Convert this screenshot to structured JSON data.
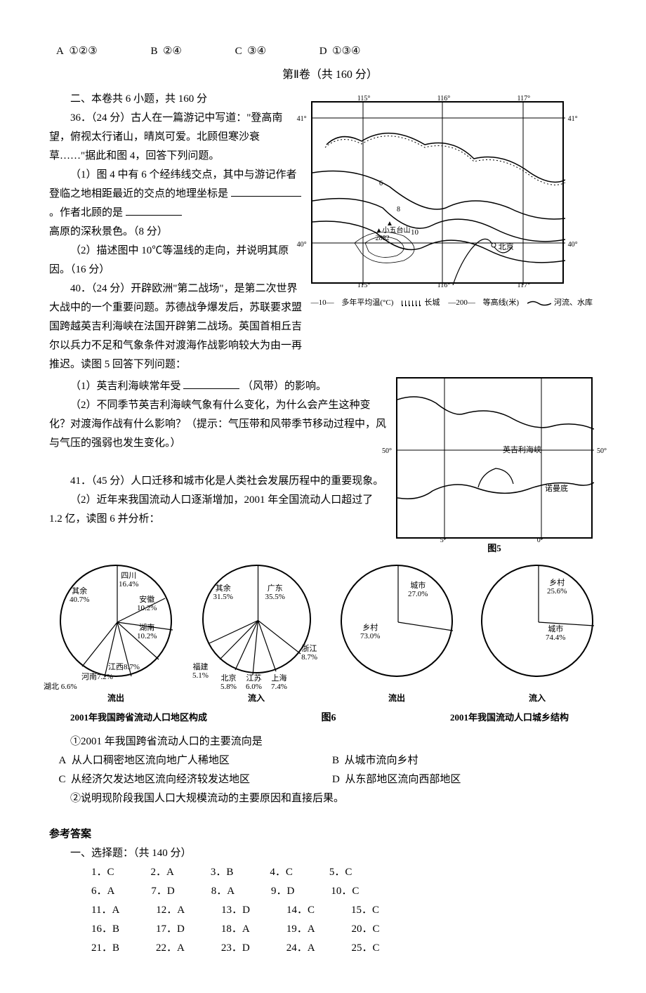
{
  "topOptions": {
    "A": "①②③",
    "B": "②④",
    "C": "③④",
    "D": "①③④"
  },
  "section2Title": "第Ⅱ卷（共 160 分）",
  "intro2": "二、本卷共 6 小题，共 160 分",
  "q36": {
    "head": "36．（24 分）古人在一篇游记中写道：\"登高南望，俯视太行诸山，晴岚可爱。北顾但寒沙衰草……\"据此和图 4，回答下列问题。",
    "p1a": "（1）图 4 中有 6 个经纬线交点，其中与游记作者登临之地相距最近的交点的地理坐标是",
    "p1b": "。作者北顾的是",
    "p1c": "高原的深秋景色。（8 分）",
    "p2": "（2）描述图中 10℃等温线的走向，并说明其原因。（16 分）"
  },
  "q40": {
    "head": "40．（24 分）开辟欧洲\"第二战场\"，是第二次世界大战中的一个重要问题。苏德战争爆发后，苏联要求盟国跨越英吉利海峡在法国开辟第二战场。英国首相丘吉尔以兵力不足和气象条件对渡海作战影响较大为由一再推迟。读图 5 回答下列问题：",
    "p1a": "（1）英吉利海峡常年受",
    "p1b": "（风带）的影响。",
    "p2": "（2）不同季节英吉利海峡气象有什么变化，为什么会产生这种变化？对渡海作战有什么影响？（提示：气压带和风带季节移动过程中，风与气压的强弱也发生变化。）"
  },
  "q41": {
    "head": "41．（45 分）人口迁移和城市化是人类社会发展历程中的重要现象。",
    "p2": "（2）近年来我国流动人口逐渐增加，2001 年全国流动人口超过了 1.2 亿，读图 6 并分析：",
    "q": "①2001 年我国跨省流动人口的主要流向是",
    "opts": {
      "A": "从人口稠密地区流向地广人稀地区",
      "B": "从城市流向乡村",
      "C": "从经济欠发达地区流向经济较发达地区",
      "D": "从东部地区流向西部地区"
    },
    "q2": "②说明现阶段我国人口大规模流动的主要原因和直接后果。"
  },
  "map4": {
    "lons": [
      "115°",
      "116°",
      "117°"
    ],
    "lats": [
      "41°",
      "40°"
    ],
    "peak_label": "▲小五台山",
    "peak_elev": "2882",
    "city": "北京",
    "iso_labels": [
      "6",
      "8",
      "10"
    ],
    "legend": {
      "iso": "多年平均温(°C)",
      "iso_prefix": "—10—",
      "wall": "长城",
      "elev_prefix": "—200—",
      "elev": "等高线(米)",
      "river": "河流、水库"
    }
  },
  "map5": {
    "lons": [
      "5°",
      "0°"
    ],
    "lats": [
      "50°"
    ],
    "strait_label": "英吉利海峡",
    "city": "诺曼底",
    "caption": "图5"
  },
  "pies": {
    "out_province": {
      "title": "流出",
      "slices": [
        {
          "label": "四川",
          "pct": "16.4%"
        },
        {
          "label": "安徽",
          "pct": "10.2%"
        },
        {
          "label": "湖南",
          "pct": "10.2%"
        },
        {
          "label": "江西",
          "pct": "8.7%"
        },
        {
          "label": "河南",
          "pct": "7.2%"
        },
        {
          "label": "湖北",
          "pct": "6.6%"
        },
        {
          "label": "其余",
          "pct": "40.7%"
        }
      ]
    },
    "in_province": {
      "title": "流入",
      "slices": [
        {
          "label": "广东",
          "pct": "35.5%"
        },
        {
          "label": "浙江",
          "pct": "8.7%"
        },
        {
          "label": "上海",
          "pct": "7.4%"
        },
        {
          "label": "江苏",
          "pct": "6.0%"
        },
        {
          "label": "北京",
          "pct": "5.8%"
        },
        {
          "label": "福建",
          "pct": "5.1%"
        },
        {
          "label": "其余",
          "pct": "31.5%"
        }
      ]
    },
    "out_urban": {
      "title": "流出",
      "slices": [
        {
          "label": "城市",
          "pct": "27.0%"
        },
        {
          "label": "乡村",
          "pct": "73.0%"
        }
      ]
    },
    "in_urban": {
      "title": "流入",
      "slices": [
        {
          "label": "乡村",
          "pct": "25.6%"
        },
        {
          "label": "城市",
          "pct": "74.4%"
        }
      ]
    },
    "caption_left": "2001年我国跨省流动人口地区构成",
    "fignum": "图6",
    "caption_right": "2001年我国流动人口城乡结构"
  },
  "answerHead": "参考答案",
  "answerSub": "一、选择题：（共 140 分）",
  "answers": [
    [
      "1．C",
      "2．A",
      "3．B",
      "4．C",
      "5．C"
    ],
    [
      "6．A",
      "7．D",
      "8．A",
      "9．D",
      "10．C"
    ],
    [
      "11．A",
      "12．A",
      "13．D",
      "14．C",
      "15．C"
    ],
    [
      "16．B",
      "17．D",
      "18．A",
      "19．A",
      "20．C"
    ],
    [
      "21．B",
      "22．A",
      "23．D",
      "24．A",
      "25．C"
    ]
  ]
}
